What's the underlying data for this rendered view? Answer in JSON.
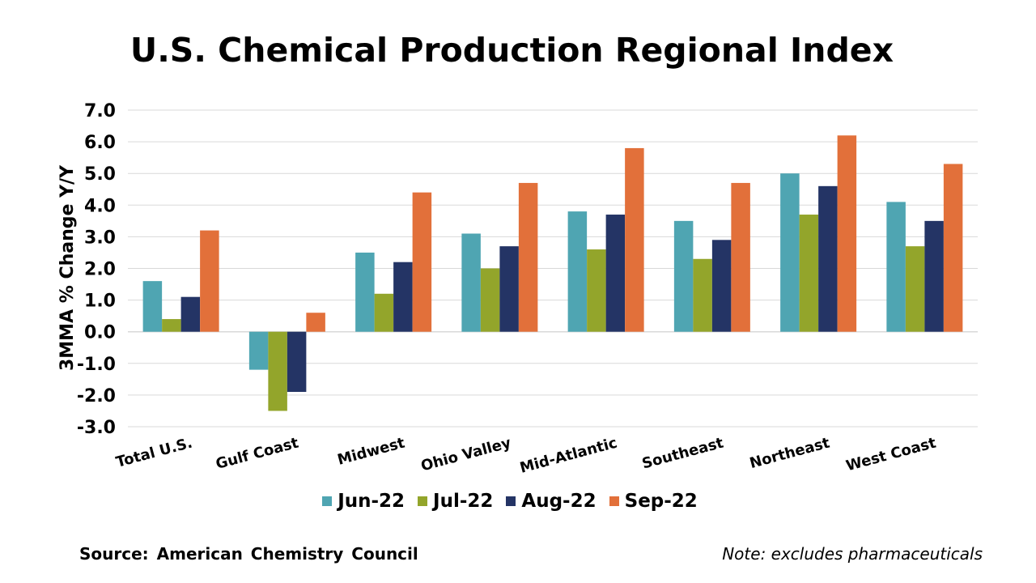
{
  "colors": {
    "Jun-22": "#4fa5b2",
    "Jul-22": "#93a52b",
    "Aug-22": "#243465",
    "Sep-22": "#e2703a",
    "grid": "#d9d9d9"
  },
  "source": "Source: American Chemistry Council",
  "note": "Note: excludes pharmaceuticals",
  "chart_data": {
    "type": "bar",
    "title": "U.S. Chemical Production Regional Index",
    "xlabel": "",
    "ylabel": "3MMA % Change Y/Y",
    "ylim": [
      -3.0,
      7.0
    ],
    "yticks": [
      "7.0",
      "6.0",
      "5.0",
      "4.0",
      "3.0",
      "2.0",
      "1.0",
      "0.0",
      "-1.0",
      "-2.0",
      "-3.0"
    ],
    "grid": true,
    "legend_position": "bottom",
    "categories": [
      "Total U.S.",
      "Gulf Coast",
      "Midwest",
      "Ohio Valley",
      "Mid-Atlantic",
      "Southeast",
      "Northeast",
      "West Coast"
    ],
    "series": [
      {
        "name": "Jun-22",
        "values": [
          1.6,
          -1.2,
          2.5,
          3.1,
          3.8,
          3.5,
          5.0,
          4.1
        ]
      },
      {
        "name": "Jul-22",
        "values": [
          0.4,
          -2.5,
          1.2,
          2.0,
          2.6,
          2.3,
          3.7,
          2.7
        ]
      },
      {
        "name": "Aug-22",
        "values": [
          1.1,
          -1.9,
          2.2,
          2.7,
          3.7,
          2.9,
          4.6,
          3.5
        ]
      },
      {
        "name": "Sep-22",
        "values": [
          3.2,
          0.6,
          4.4,
          4.7,
          5.8,
          4.7,
          6.2,
          5.3
        ]
      }
    ]
  }
}
